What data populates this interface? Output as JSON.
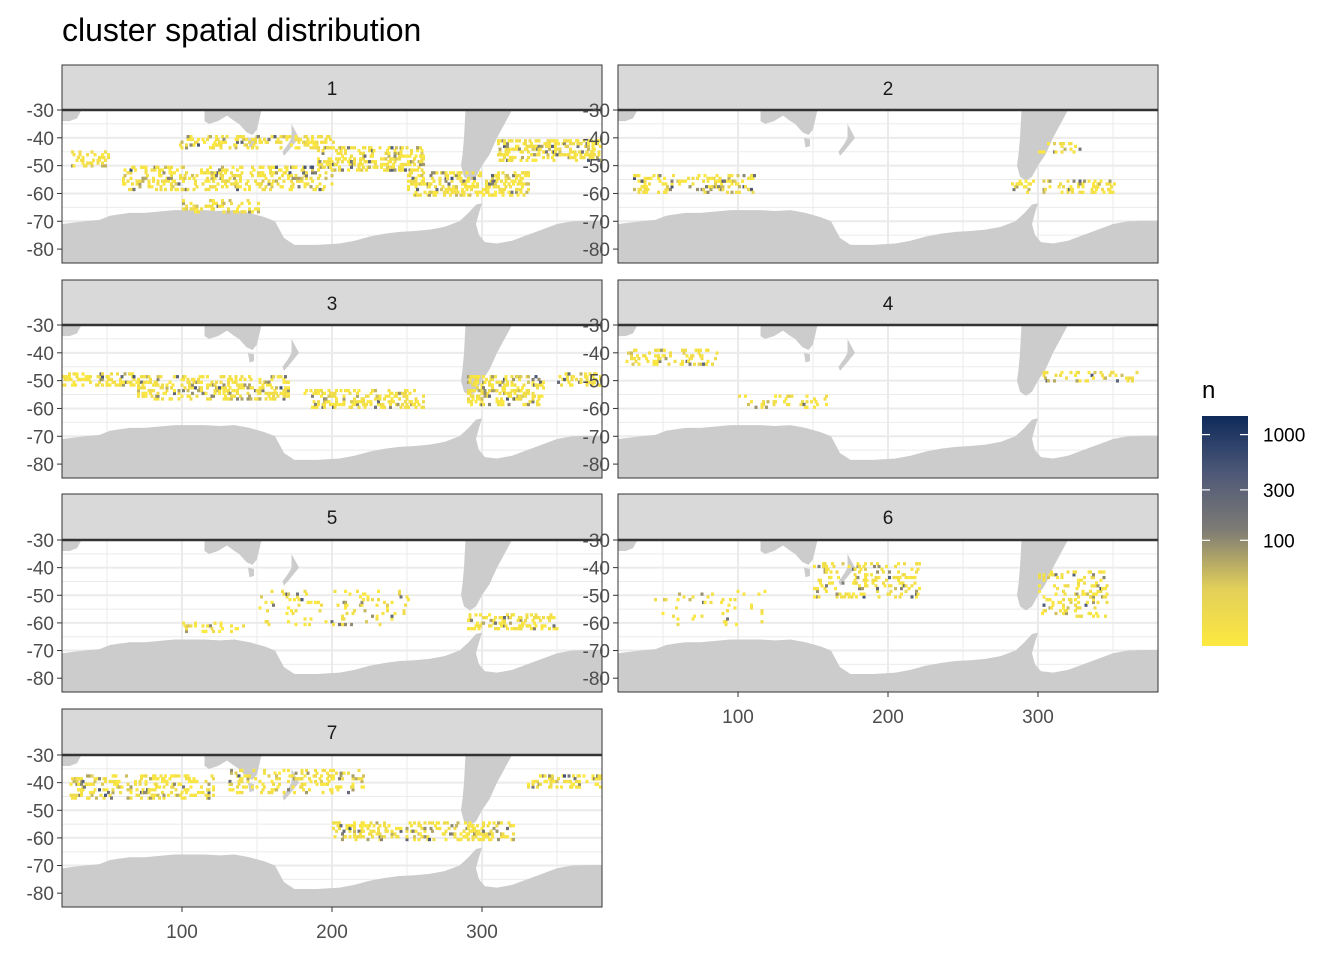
{
  "chart_data": {
    "type": "heatmap",
    "title": "cluster spatial distribution",
    "facet_variable": "cluster",
    "facets": [
      "1",
      "2",
      "3",
      "4",
      "5",
      "6",
      "7"
    ],
    "xlim": [
      20,
      380
    ],
    "ylim": [
      -85,
      -30
    ],
    "x_ticks": [
      100,
      200,
      300
    ],
    "y_ticks": [
      -30,
      -40,
      -50,
      -60,
      -70,
      -80
    ],
    "x_tick_labels": [
      "100",
      "200",
      "300"
    ],
    "y_tick_labels": [
      "-30",
      "-40",
      "-50",
      "-60",
      "-70",
      "-80"
    ],
    "grid": true,
    "land_color": "#cccccc",
    "legend": {
      "title": "n",
      "position": "right",
      "scale": "log10",
      "range": [
        10,
        1500
      ],
      "breaks": [
        100,
        300,
        1000
      ],
      "break_labels": [
        "100",
        "300",
        "1000"
      ],
      "colors": [
        "#fde93f",
        "#e2cf5a",
        "#7f7c75",
        "#4e5978",
        "#0e2a5a"
      ]
    },
    "density_bands": {
      "1": [
        {
          "x": [
            25,
            50
          ],
          "y": -48,
          "h": 5,
          "density": 0.6
        },
        {
          "x": [
            95,
            200
          ],
          "y": -42,
          "h": 4,
          "density": 0.55
        },
        {
          "x": [
            60,
            200
          ],
          "y": -55,
          "h": 8,
          "density": 0.5
        },
        {
          "x": [
            190,
            260
          ],
          "y": -48,
          "h": 8,
          "density": 0.7
        },
        {
          "x": [
            250,
            330
          ],
          "y": -57,
          "h": 8,
          "density": 0.65
        },
        {
          "x": [
            310,
            380
          ],
          "y": -45,
          "h": 7,
          "density": 0.75
        },
        {
          "x": [
            100,
            150
          ],
          "y": -65,
          "h": 4,
          "density": 0.45
        }
      ],
      "2": [
        {
          "x": [
            30,
            110
          ],
          "y": -57,
          "h": 6,
          "density": 0.45
        },
        {
          "x": [
            280,
            350
          ],
          "y": -58,
          "h": 4,
          "density": 0.4
        },
        {
          "x": [
            300,
            330
          ],
          "y": -44,
          "h": 3,
          "density": 0.3
        }
      ],
      "3": [
        {
          "x": [
            20,
            70
          ],
          "y": -50,
          "h": 4,
          "density": 0.6
        },
        {
          "x": [
            70,
            170
          ],
          "y": -53,
          "h": 8,
          "density": 0.6
        },
        {
          "x": [
            180,
            260
          ],
          "y": -57,
          "h": 6,
          "density": 0.55
        },
        {
          "x": [
            290,
            340
          ],
          "y": -54,
          "h": 10,
          "density": 0.65
        },
        {
          "x": [
            350,
            380
          ],
          "y": -50,
          "h": 4,
          "density": 0.5
        }
      ],
      "4": [
        {
          "x": [
            25,
            85
          ],
          "y": -42,
          "h": 5,
          "density": 0.45
        },
        {
          "x": [
            100,
            160
          ],
          "y": -58,
          "h": 4,
          "density": 0.3
        },
        {
          "x": [
            300,
            365
          ],
          "y": -49,
          "h": 3,
          "density": 0.35
        }
      ],
      "5": [
        {
          "x": [
            100,
            140
          ],
          "y": -62,
          "h": 3,
          "density": 0.35
        },
        {
          "x": [
            290,
            350
          ],
          "y": -60,
          "h": 5,
          "density": 0.55
        },
        {
          "x": [
            150,
            250
          ],
          "y": -55,
          "h": 12,
          "density": 0.15
        }
      ],
      "6": [
        {
          "x": [
            150,
            220
          ],
          "y": -45,
          "h": 12,
          "density": 0.3
        },
        {
          "x": [
            300,
            345
          ],
          "y": -50,
          "h": 16,
          "density": 0.35
        },
        {
          "x": [
            40,
            120
          ],
          "y": -55,
          "h": 12,
          "density": 0.1
        }
      ],
      "7": [
        {
          "x": [
            25,
            120
          ],
          "y": -42,
          "h": 8,
          "density": 0.45
        },
        {
          "x": [
            200,
            320
          ],
          "y": -58,
          "h": 6,
          "density": 0.55
        },
        {
          "x": [
            330,
            380
          ],
          "y": -40,
          "h": 4,
          "density": 0.55
        },
        {
          "x": [
            130,
            220
          ],
          "y": -40,
          "h": 8,
          "density": 0.35
        }
      ]
    }
  }
}
